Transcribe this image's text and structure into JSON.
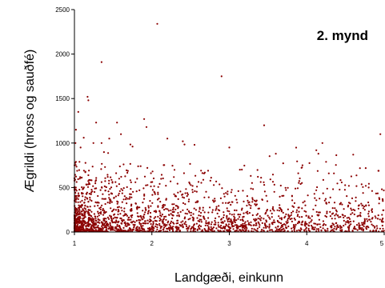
{
  "colors": {
    "point": "#8b0000",
    "axis": "#000000",
    "background": "#ffffff"
  },
  "chart_data": {
    "type": "scatter",
    "title": "",
    "annotation": "2. mynd",
    "xlabel": "Landgæði, einkunn",
    "ylabel": "Ægrildi (hross og sauðfé)",
    "xlim": [
      1,
      5
    ],
    "ylim": [
      0,
      2500
    ],
    "xticks": [
      "1",
      "2",
      "3",
      "4",
      "5"
    ],
    "yticks": [
      "0",
      "500",
      "1000",
      "1500",
      "2000",
      "2500"
    ],
    "grid": false,
    "legend": "none",
    "series": [
      {
        "points": [
          [
            2.07,
            2340
          ],
          [
            1.35,
            1910
          ],
          [
            2.9,
            1750
          ],
          [
            1.17,
            1520
          ],
          [
            1.18,
            1480
          ],
          [
            1.05,
            1350
          ],
          [
            3.45,
            1200
          ],
          [
            1.55,
            1230
          ],
          [
            1.9,
            1270
          ],
          [
            1.93,
            1180
          ],
          [
            1.02,
            1150
          ],
          [
            4.95,
            1100
          ],
          [
            1.28,
            1230
          ],
          [
            1.6,
            1100
          ],
          [
            1.45,
            1050
          ],
          [
            2.2,
            1050
          ],
          [
            4.15,
            880
          ],
          [
            4.6,
            870
          ],
          [
            3.6,
            880
          ],
          [
            2.4,
            1020
          ],
          [
            1.12,
            1060
          ],
          [
            1.35,
            1000
          ],
          [
            1.08,
            950
          ],
          [
            1.75,
            960
          ],
          [
            2.55,
            980
          ],
          [
            3.0,
            950
          ],
          [
            4.8,
            500
          ],
          [
            4.97,
            480
          ],
          [
            4.85,
            160
          ],
          [
            4.75,
            250
          ]
        ],
        "cloud": {
          "count": 2100,
          "x_range": [
            1,
            5
          ],
          "x_concentration": "highest near 1, decreasing toward 5",
          "y_typical_max": 800,
          "y_concentration": "dense below 300"
        }
      }
    ]
  }
}
